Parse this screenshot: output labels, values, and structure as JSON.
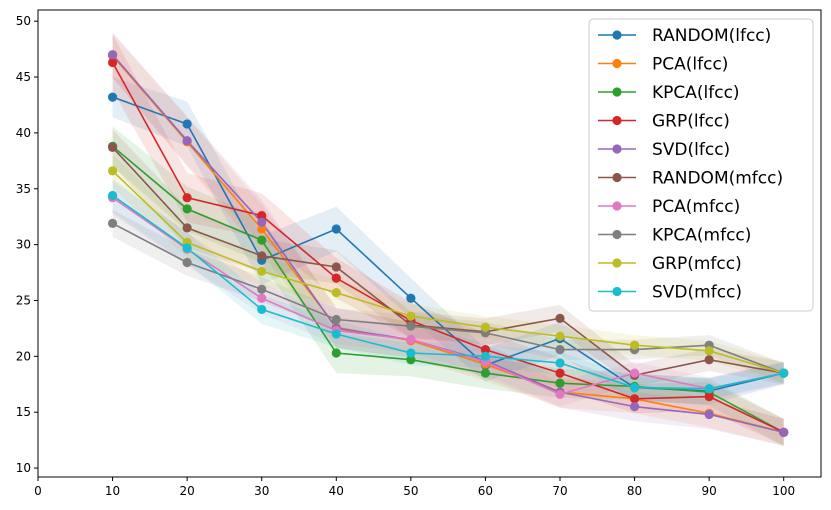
{
  "chart_data": {
    "type": "line",
    "title": "",
    "xlabel": "",
    "ylabel": "",
    "xlim": [
      0,
      105
    ],
    "ylim": [
      9.2,
      51
    ],
    "x": [
      10,
      20,
      30,
      40,
      50,
      60,
      70,
      80,
      90,
      100
    ],
    "xticks": [
      "0",
      "10",
      "20",
      "30",
      "40",
      "50",
      "60",
      "70",
      "80",
      "90",
      "100"
    ],
    "yticks": [
      "10",
      "15",
      "20",
      "25",
      "30",
      "35",
      "40",
      "45",
      "50"
    ],
    "grid": false,
    "legend_position": "top-right",
    "series": [
      {
        "name": "RANDOM(lfcc)",
        "color": "#1f77b4",
        "values": [
          43.2,
          40.8,
          28.6,
          31.4,
          25.2,
          19.2,
          21.6,
          17.2,
          16.9,
          18.5
        ],
        "band": [
          1.8,
          2.0,
          2.2,
          2.0,
          1.8,
          1.5,
          1.5,
          1.2,
          1.2,
          1.0
        ]
      },
      {
        "name": "PCA(lfcc)",
        "color": "#ff7f0e",
        "values": [
          46.9,
          39.2,
          31.4,
          22.6,
          21.4,
          19.3,
          16.8,
          16.2,
          14.9,
          13.2
        ],
        "band": [
          2.0,
          2.2,
          2.2,
          1.8,
          1.6,
          1.5,
          1.4,
          1.3,
          1.3,
          1.2
        ]
      },
      {
        "name": "KPCA(lfcc)",
        "color": "#2ca02c",
        "values": [
          38.8,
          33.2,
          30.4,
          20.3,
          19.7,
          18.5,
          17.6,
          17.3,
          16.8,
          13.2
        ],
        "band": [
          1.8,
          2.0,
          2.0,
          1.8,
          1.5,
          1.4,
          1.3,
          1.2,
          1.2,
          1.2
        ]
      },
      {
        "name": "GRP(lfcc)",
        "color": "#d62728",
        "values": [
          46.3,
          34.2,
          32.6,
          27.0,
          23.2,
          20.6,
          18.5,
          16.2,
          16.4,
          13.2
        ],
        "band": [
          2.5,
          2.2,
          2.0,
          1.8,
          1.6,
          1.5,
          1.4,
          1.3,
          1.3,
          1.2
        ]
      },
      {
        "name": "SVD(lfcc)",
        "color": "#9467bd",
        "values": [
          47.0,
          39.3,
          32.0,
          22.5,
          21.5,
          19.6,
          16.8,
          15.5,
          14.8,
          13.2
        ],
        "band": [
          2.0,
          2.2,
          2.0,
          1.8,
          1.6,
          1.5,
          1.4,
          1.3,
          1.3,
          1.2
        ]
      },
      {
        "name": "RANDOM(mfcc)",
        "color": "#8c564b",
        "values": [
          38.7,
          31.5,
          29.0,
          28.0,
          22.8,
          22.2,
          23.4,
          18.3,
          19.7,
          18.5
        ],
        "band": [
          1.6,
          1.8,
          1.5,
          1.5,
          1.2,
          1.2,
          1.2,
          1.0,
          1.0,
          1.0
        ]
      },
      {
        "name": "PCA(mfcc)",
        "color": "#e377c2",
        "values": [
          34.2,
          29.6,
          25.2,
          22.3,
          21.5,
          19.5,
          16.6,
          18.5,
          17.1,
          18.5
        ],
        "band": [
          1.5,
          1.5,
          1.4,
          1.2,
          1.2,
          1.1,
          1.1,
          1.0,
          1.0,
          1.0
        ]
      },
      {
        "name": "KPCA(mfcc)",
        "color": "#7f7f7f",
        "values": [
          31.9,
          28.4,
          26.0,
          23.3,
          22.7,
          22.1,
          20.6,
          20.6,
          21.0,
          18.5
        ],
        "band": [
          1.2,
          1.2,
          1.1,
          1.0,
          1.0,
          1.0,
          0.9,
          0.9,
          0.9,
          0.9
        ]
      },
      {
        "name": "GRP(mfcc)",
        "color": "#bcbd22",
        "values": [
          36.6,
          30.2,
          27.6,
          25.7,
          23.6,
          22.6,
          21.8,
          21.0,
          20.5,
          18.5
        ],
        "band": [
          1.5,
          1.4,
          1.3,
          1.2,
          1.1,
          1.0,
          1.0,
          0.9,
          0.9,
          0.9
        ]
      },
      {
        "name": "SVD(mfcc)",
        "color": "#17becf",
        "values": [
          34.4,
          29.7,
          24.2,
          22.0,
          20.3,
          20.0,
          19.4,
          17.2,
          17.1,
          18.5
        ],
        "band": [
          1.5,
          1.4,
          1.3,
          1.2,
          1.1,
          1.0,
          1.0,
          0.9,
          0.9,
          0.9
        ]
      }
    ]
  }
}
